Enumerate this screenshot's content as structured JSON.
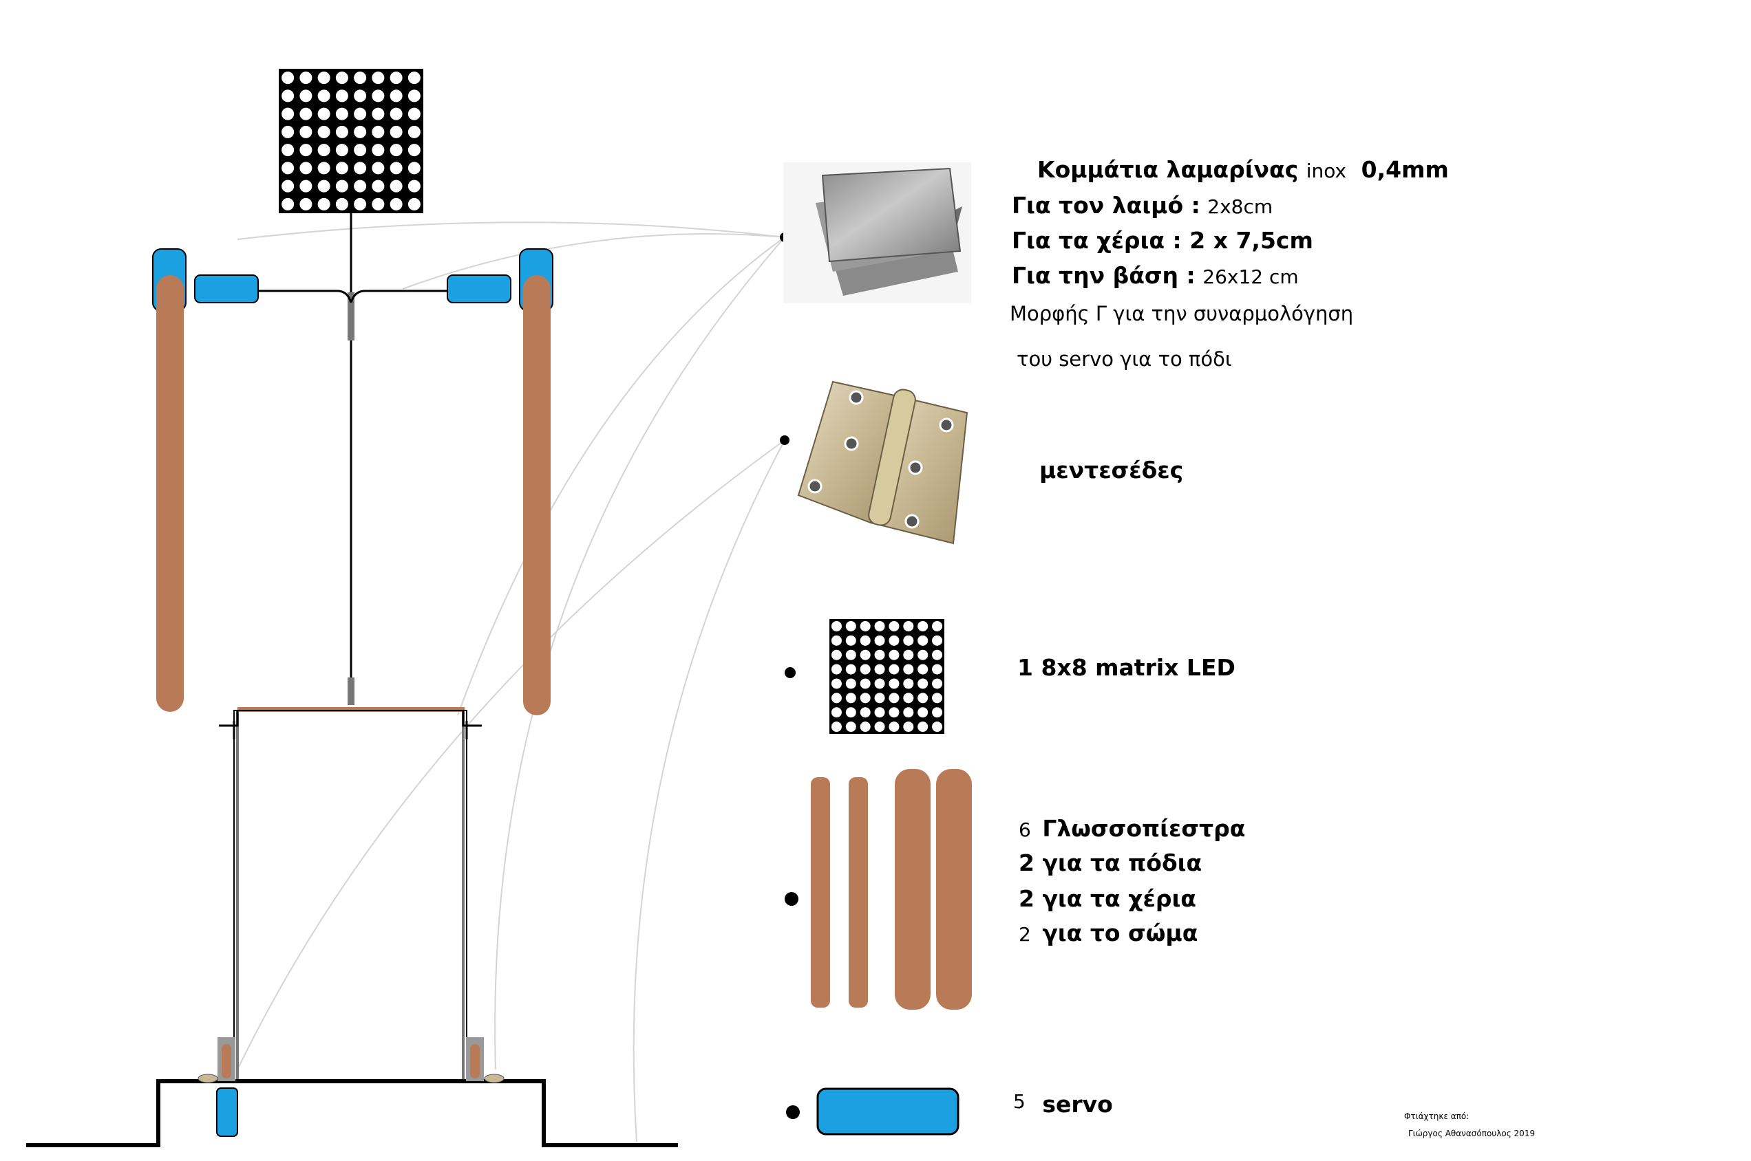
{
  "labels": {
    "sheet_title_a": "Κομμάτια λαμαρίνας",
    "sheet_title_b": "inox",
    "sheet_title_c": "0,4mm",
    "neck_label": "Για τον λαιμό :",
    "neck_value": "2x8cm",
    "hands_label": "Για τα χέρια : 2 x 7,5cm",
    "base_label": "Για την βάση :",
    "base_value": "26x12 cm",
    "shape_line1": "Μορφής Γ για την συναρμολόγηση",
    "shape_line2": "του servo για το πόδι",
    "hinges": "μεντεσέδες",
    "matrix": "1 8x8 matrix LED",
    "sticks_count": "6",
    "sticks_title": "Γλωσσοπίεστρα",
    "sticks_legs": "2 για τα πόδια",
    "sticks_hands": "2 για τα χέρια",
    "sticks_body_count": "2",
    "sticks_body": "για το σώμα",
    "servo_count": "5",
    "servo_label": "servo",
    "credit_title": "Φτιάχτηκε από:",
    "credit_name": "Γιώργος Αθανασόπουλος 2019"
  },
  "colors": {
    "servo_blue": "#1ba1e2",
    "wood_brown": "#b97a57",
    "metal_gray": "#9a9a9a",
    "hinge_brass": "#cdbf9f",
    "line_black": "#000000",
    "connector_gray": "#d4d4d4"
  },
  "icons": {
    "sheet_metal": "sheet-metal-icon",
    "hinge": "hinge-icon",
    "led_matrix": "led-matrix-icon",
    "tongue_depressors": "tongue-depressor-icon",
    "servo": "servo-icon"
  }
}
